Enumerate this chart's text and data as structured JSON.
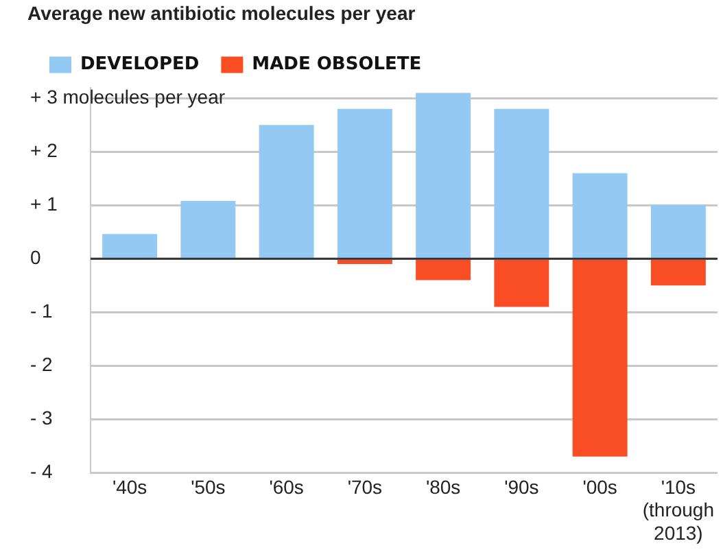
{
  "chart_data": {
    "type": "bar",
    "title": "Average new antibiotic molecules per year",
    "categories": [
      "'40s",
      "'50s",
      "'60s",
      "'70s",
      "'80s",
      "'90s",
      "'00s",
      "'10s\n(through\n2013)"
    ],
    "series": [
      {
        "name": "DEVELOPED",
        "color": "#93c9f2",
        "values": [
          0.46,
          1.08,
          2.5,
          2.8,
          3.1,
          2.8,
          1.6,
          1.0
        ]
      },
      {
        "name": "MADE OBSOLETE",
        "color": "#f94e24",
        "values": [
          0,
          0,
          0,
          -0.1,
          -0.4,
          -0.9,
          -3.7,
          -0.5
        ]
      }
    ],
    "stacked": true,
    "ylim": [
      -4,
      3.2
    ],
    "yticks": [
      {
        "value": 3,
        "label": "+ 3 molecules per year"
      },
      {
        "value": 2,
        "label": "+ 2"
      },
      {
        "value": 1,
        "label": "+ 1"
      },
      0,
      {
        "value": -1,
        "label": "- 1"
      },
      {
        "value": -2,
        "label": "- 2"
      },
      {
        "value": -3,
        "label": "- 3"
      },
      {
        "value": -4,
        "label": "- 4"
      }
    ],
    "grid": "y",
    "legend": "top left"
  }
}
